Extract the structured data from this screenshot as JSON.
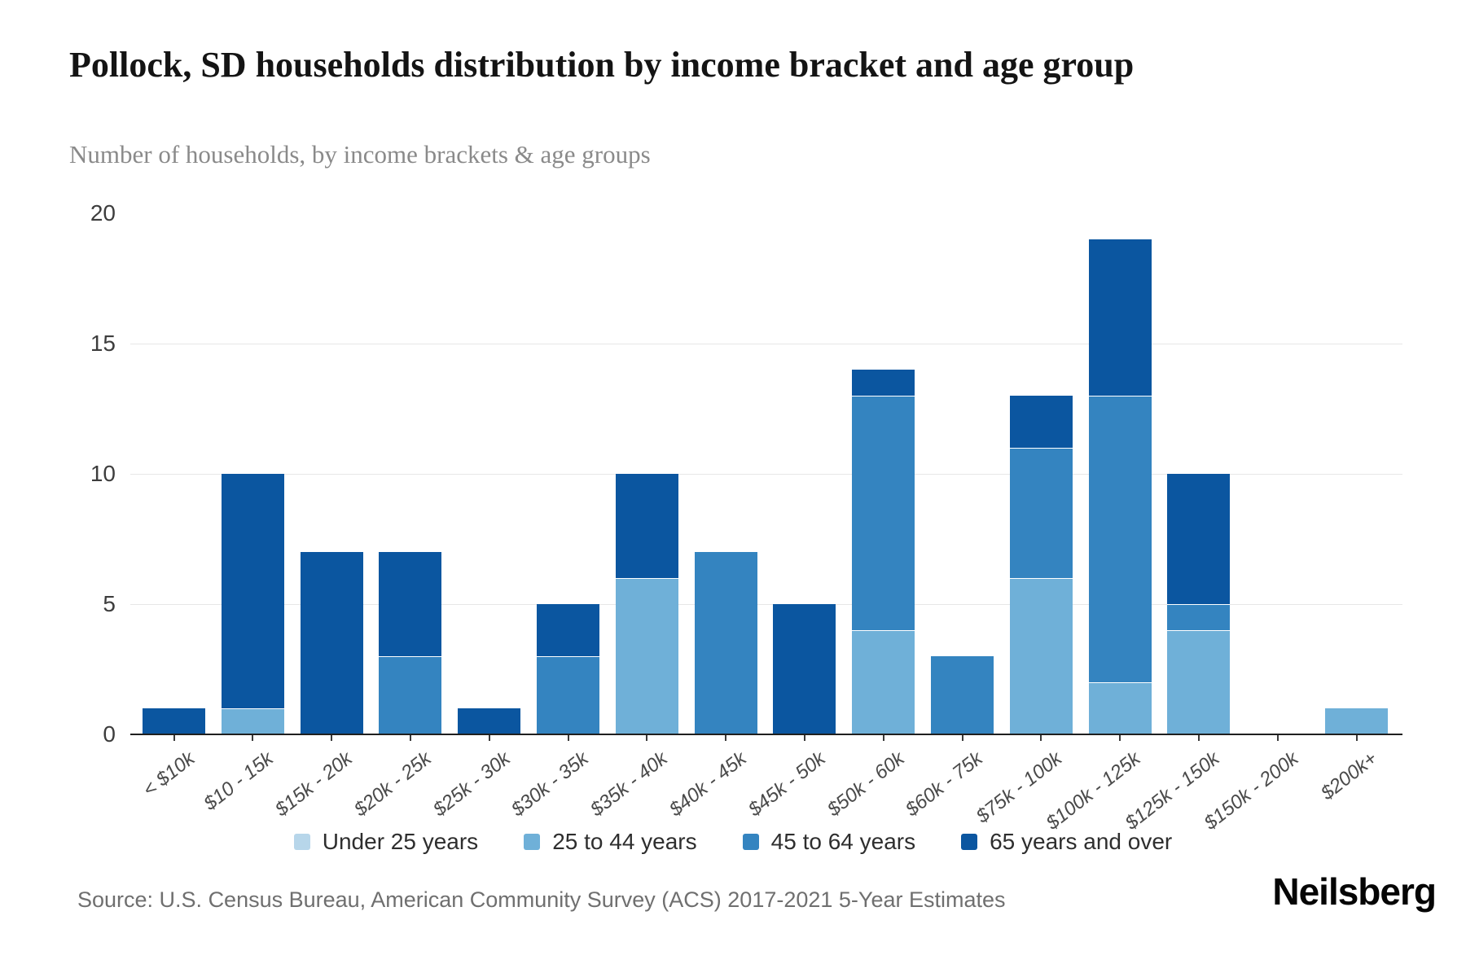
{
  "header": {
    "title": "Pollock, SD households distribution by income bracket and age group",
    "subtitle": "Number of households, by income brackets & age groups"
  },
  "chart_data": {
    "type": "bar",
    "stacked": true,
    "title": "Pollock, SD households distribution by income bracket and age group",
    "xlabel": "",
    "ylabel": "Number of households",
    "ylim": [
      0,
      20
    ],
    "yticks": [
      0,
      5,
      10,
      15,
      20
    ],
    "gridlines": [
      5,
      10,
      15
    ],
    "grid": true,
    "legend_position": "bottom",
    "categories": [
      "< $10k",
      "$10 - 15k",
      "$15k - 20k",
      "$20k - 25k",
      "$25k - 30k",
      "$30k - 35k",
      "$35k - 40k",
      "$40k - 45k",
      "$45k - 50k",
      "$50k - 60k",
      "$60k - 75k",
      "$75k - 100k",
      "$100k - 125k",
      "$125k - 150k",
      "$150k - 200k",
      "$200k+"
    ],
    "series": [
      {
        "name": "Under 25 years",
        "color": "#b7d6ea",
        "values": [
          0,
          0,
          0,
          0,
          0,
          0,
          0,
          0,
          0,
          0,
          0,
          0,
          0,
          0,
          0,
          0
        ]
      },
      {
        "name": "25 to 44 years",
        "color": "#6fb0d8",
        "values": [
          0,
          1,
          0,
          0,
          0,
          0,
          6,
          0,
          0,
          4,
          0,
          6,
          2,
          4,
          0,
          1
        ]
      },
      {
        "name": "45 to 64 years",
        "color": "#3484c0",
        "values": [
          0,
          0,
          0,
          3,
          0,
          3,
          0,
          7,
          0,
          9,
          3,
          5,
          11,
          1,
          0,
          0
        ]
      },
      {
        "name": "65 years and over",
        "color": "#0b56a0",
        "values": [
          1,
          9,
          7,
          4,
          1,
          2,
          4,
          0,
          5,
          1,
          0,
          2,
          6,
          5,
          0,
          0
        ]
      }
    ],
    "totals": [
      1,
      10,
      7,
      7,
      1,
      5,
      10,
      7,
      5,
      14,
      3,
      13,
      19,
      10,
      0,
      1
    ]
  },
  "footer": {
    "source": "Source: U.S. Census Bureau, American Community Survey (ACS) 2017-2021 5-Year Estimates",
    "logo": "Neilsberg"
  }
}
